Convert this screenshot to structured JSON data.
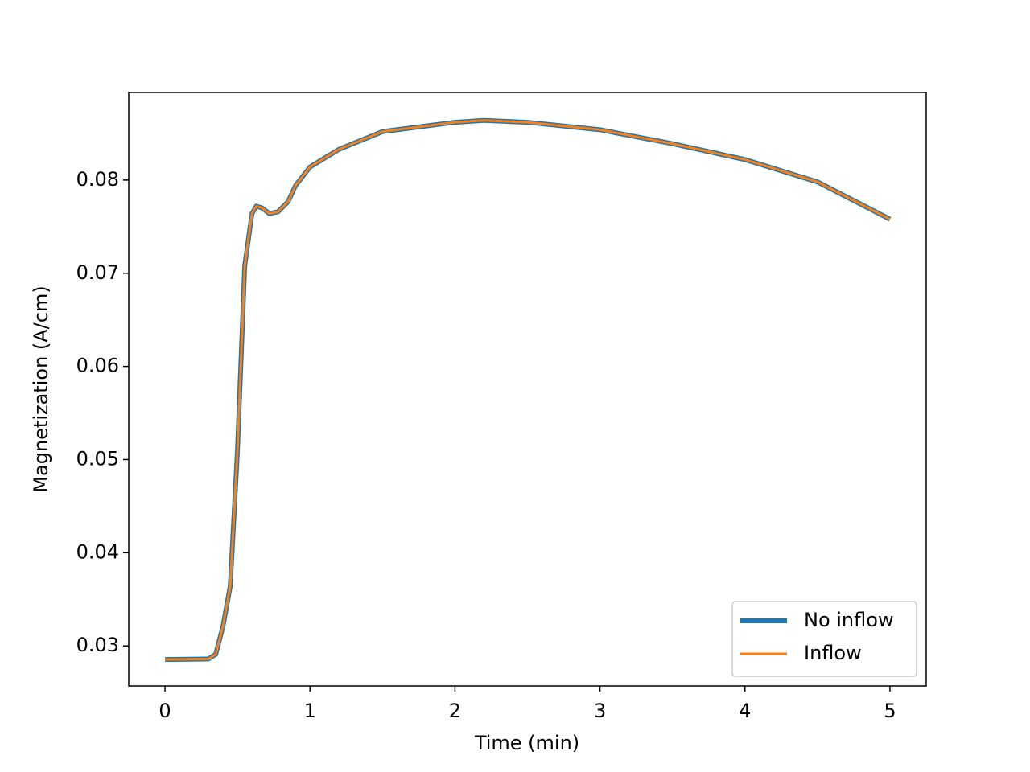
{
  "chart_data": {
    "type": "line",
    "x_label": "Time (min)",
    "y_label": "Magnetization (A/cm)",
    "x": [
      0,
      0.3,
      0.35,
      0.4,
      0.45,
      0.5,
      0.55,
      0.6,
      0.63,
      0.67,
      0.72,
      0.78,
      0.85,
      0.9,
      1.0,
      1.2,
      1.5,
      2.0,
      2.2,
      2.5,
      3.0,
      3.5,
      4.0,
      4.5,
      5.0
    ],
    "series": [
      {
        "name": "No inflow",
        "color": "#1f77b4",
        "values": [
          0.02854,
          0.0286,
          0.0291,
          0.0321,
          0.0364,
          0.051,
          0.0708,
          0.0764,
          0.0772,
          0.077,
          0.0764,
          0.0766,
          0.0777,
          0.0794,
          0.0814,
          0.0833,
          0.0852,
          0.0862,
          0.0864,
          0.0862,
          0.0854,
          0.0839,
          0.0822,
          0.0798,
          0.0758
        ]
      },
      {
        "name": "Inflow",
        "color": "#ff7f0e",
        "values": [
          0.02854,
          0.0286,
          0.0291,
          0.0321,
          0.0364,
          0.051,
          0.0708,
          0.0764,
          0.0772,
          0.077,
          0.0764,
          0.0766,
          0.0777,
          0.0794,
          0.0814,
          0.0833,
          0.0852,
          0.0862,
          0.0864,
          0.0862,
          0.0854,
          0.0839,
          0.0822,
          0.0798,
          0.0758
        ]
      }
    ],
    "xlim": [
      -0.25,
      5.25
    ],
    "xticks": [
      0,
      1,
      2,
      3,
      4,
      5
    ],
    "ylim": [
      0.0257,
      0.0894
    ],
    "yticks": [
      0.03,
      0.04,
      0.05,
      0.06,
      0.07,
      0.08
    ],
    "legend": "lower right"
  }
}
